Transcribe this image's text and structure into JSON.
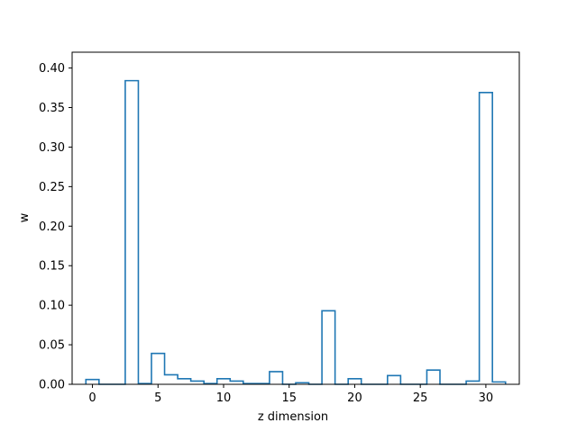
{
  "chart_data": {
    "type": "bar",
    "style": "step",
    "title": "",
    "xlabel": "z dimension",
    "ylabel": "w",
    "xlim": [
      -1.55,
      32.55
    ],
    "ylim": [
      0,
      0.42
    ],
    "grid": false,
    "x": [
      0,
      1,
      2,
      3,
      4,
      5,
      6,
      7,
      8,
      9,
      10,
      11,
      12,
      13,
      14,
      15,
      16,
      17,
      18,
      19,
      20,
      21,
      22,
      23,
      24,
      25,
      26,
      27,
      28,
      29,
      30,
      31
    ],
    "values": [
      0.006,
      0.0,
      0.0,
      0.384,
      0.001,
      0.039,
      0.012,
      0.007,
      0.004,
      0.001,
      0.007,
      0.004,
      0.001,
      0.001,
      0.016,
      0.0,
      0.002,
      0.0,
      0.093,
      0.0,
      0.007,
      0.0,
      0.0,
      0.011,
      0.0,
      0.0,
      0.018,
      0.0,
      0.0,
      0.004,
      0.369,
      0.003
    ],
    "xticks": [
      "0",
      "5",
      "10",
      "15",
      "20",
      "25",
      "30"
    ],
    "yticks": [
      "0.00",
      "0.05",
      "0.10",
      "0.15",
      "0.20",
      "0.25",
      "0.30",
      "0.35",
      "0.40"
    ],
    "color": "#1f77b4"
  }
}
